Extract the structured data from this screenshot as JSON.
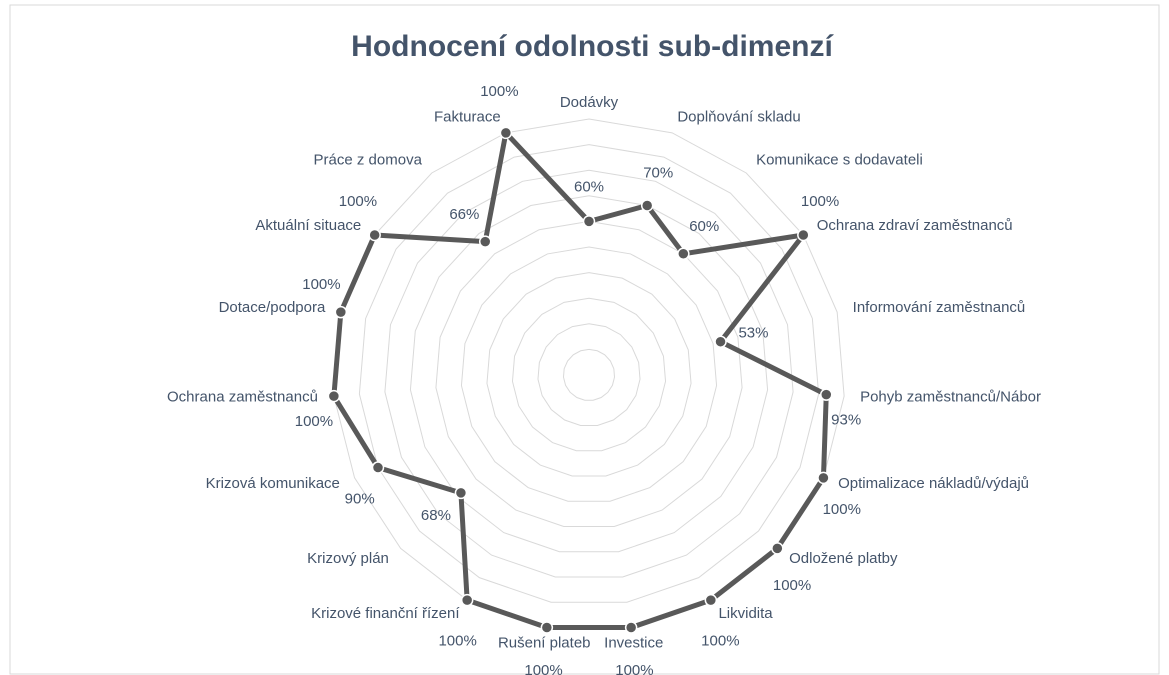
{
  "chart_data": {
    "type": "radar",
    "title": "Hodnocení odolnosti sub-dimenzí",
    "categories": [
      "Dodávky",
      "Doplňování skladu",
      "Komunikace s dodavateli",
      "Ochrana zdraví zaměstnanců",
      "Informování zaměstnanců",
      "Pohyb zaměstnanců/Nábor",
      "Optimalizace nákladů/výdajů",
      "Odložené platby",
      "Likvidita",
      "Investice",
      "Rušení plateb",
      "Krizové finanční řízení",
      "Krizový plán",
      "Krizová komunikace",
      "Ochrana zaměstnanců",
      "Dotace/podpora",
      "Aktuální situace",
      "Práce z domova",
      "Fakturace"
    ],
    "values": [
      60,
      70,
      60,
      100,
      53,
      93,
      100,
      100,
      100,
      100,
      100,
      100,
      68,
      90,
      100,
      100,
      100,
      66,
      100
    ],
    "value_labels": [
      "60%",
      "70%",
      "60%",
      "100%",
      "53%",
      "93%",
      "100%",
      "100%",
      "100%",
      "100%",
      "100%",
      "100%",
      "68%",
      "90%",
      "100%",
      "100%",
      "100%",
      "66%",
      "100%"
    ],
    "color": "#595959",
    "rlim": [
      0,
      100
    ],
    "rticks": [
      10,
      20,
      30,
      40,
      50,
      60,
      70,
      80,
      90,
      100
    ],
    "grid": true
  }
}
